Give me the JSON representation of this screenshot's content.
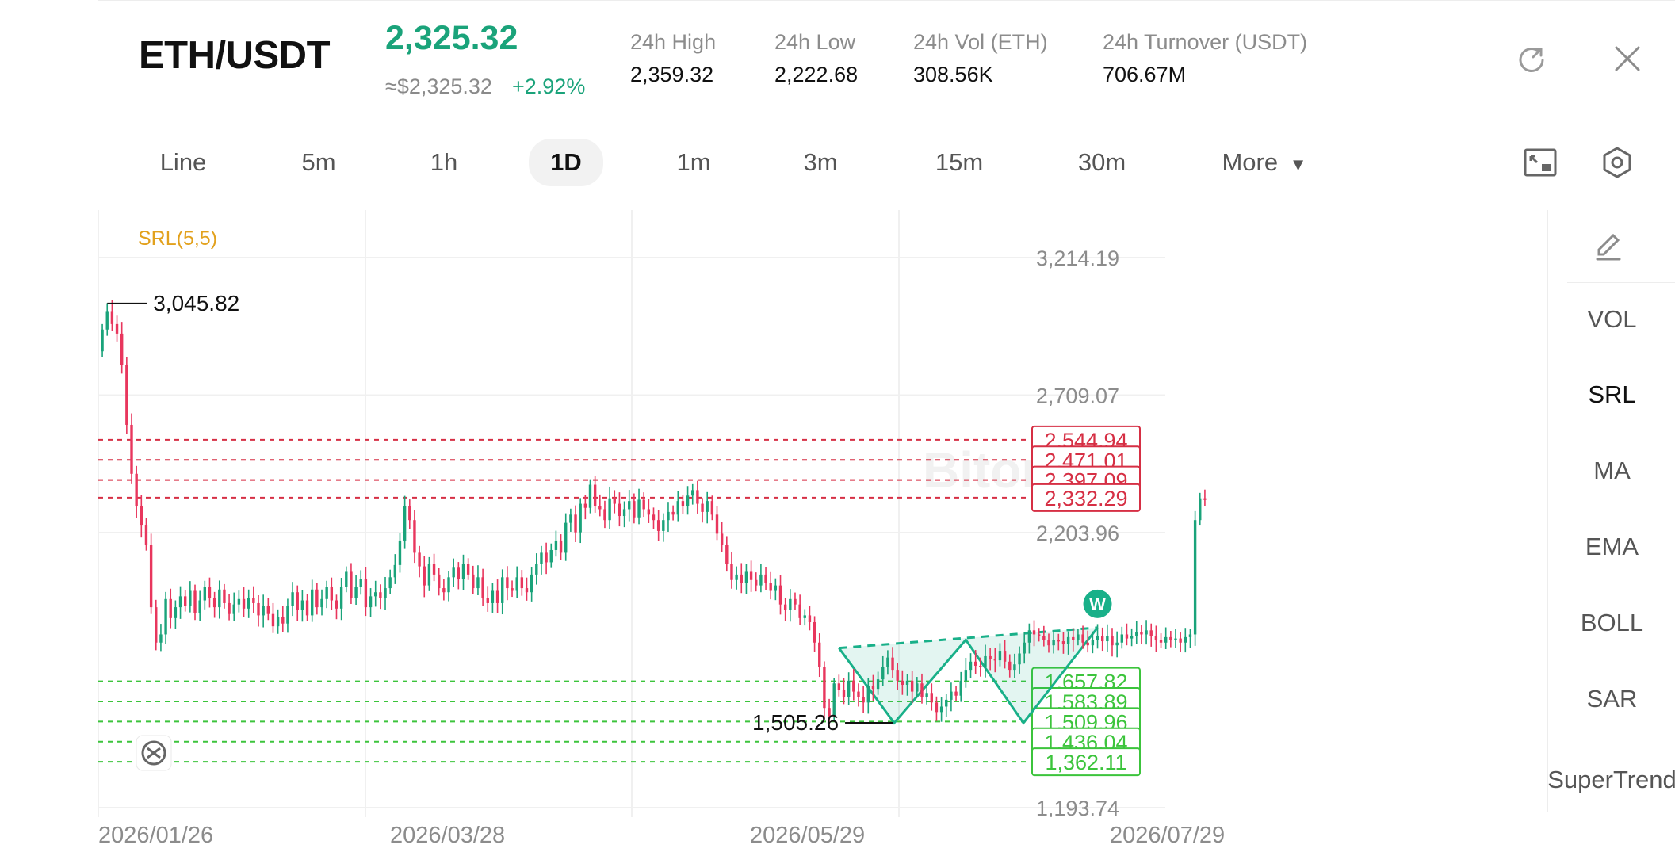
{
  "header": {
    "pair": "ETH/USDT",
    "last_price": "2,325.32",
    "usd_price": "≈$2,325.32",
    "change_pct": "+2.92%",
    "stats": [
      {
        "label": "24h   High",
        "value": "2,359.32"
      },
      {
        "label": "24h   Low",
        "value": "2,222.68"
      },
      {
        "label": "24h   Vol (ETH)",
        "value": "308.56K"
      },
      {
        "label": "24h   Turnover (USDT)",
        "value": "706.67M"
      }
    ],
    "icons": [
      "share-icon",
      "close-icon"
    ]
  },
  "timeframes": {
    "tabs": [
      "Line",
      "5m",
      "1h",
      "1D",
      "1m",
      "3m",
      "15m",
      "30m",
      "More"
    ],
    "active": "1D",
    "tool_icons": [
      "fullscreen-icon",
      "settings-icon"
    ]
  },
  "side_panel": {
    "items": [
      "VOL",
      "SRL",
      "MA",
      "EMA",
      "BOLL",
      "SAR",
      "SuperTrend"
    ],
    "active": "SRL",
    "icon": "edit-icon"
  },
  "colors": {
    "up": "#1aa37a",
    "down": "#e8365d",
    "resistance": "#d62f44",
    "support": "#3cc43c",
    "indicator_label": "#e2a11d",
    "pattern": "#19b089"
  },
  "chart_data": {
    "type": "candlestick",
    "indicator_label": "SRL(5,5)",
    "y_axis_ticks": [
      "3,214.19",
      "2,709.07",
      "2,203.96",
      "1,193.74"
    ],
    "x_axis_ticks": [
      "2026/01/26",
      "2026/03/28",
      "2026/05/29",
      "2026/07/29"
    ],
    "ylim": [
      1193.74,
      3214.19
    ],
    "max_marker": "3,045.82",
    "min_marker": "1,505.26",
    "resistance_levels": [
      "2,544.94",
      "2,471.01",
      "2,397.09",
      "2,332.29"
    ],
    "support_levels": [
      "1,657.82",
      "1,583.89",
      "1,509.96",
      "1,436.04",
      "1,362.11"
    ],
    "pattern_badge": "W",
    "closes": [
      2950,
      3015,
      2970,
      2935,
      2820,
      2600,
      2420,
      2300,
      2230,
      2160,
      1930,
      1800,
      1830,
      1960,
      1890,
      1930,
      1970,
      1935,
      1990,
      1910,
      1955,
      2005,
      1965,
      1930,
      1995,
      1945,
      1905,
      1940,
      1960,
      1925,
      1965,
      1945,
      1900,
      1935,
      1905,
      1860,
      1895,
      1870,
      1935,
      1985,
      1920,
      1955,
      1900,
      1995,
      1930,
      1960,
      2005,
      1955,
      1925,
      2005,
      2060,
      1965,
      2005,
      2035,
      1930,
      1970,
      1985,
      1965,
      2000,
      2040,
      2085,
      2175,
      2300,
      2250,
      2130,
      2080,
      2010,
      2090,
      2050,
      2000,
      1985,
      2040,
      2075,
      2035,
      2090,
      2050,
      2000,
      2040,
      1965,
      1945,
      1990,
      1945,
      2040,
      2000,
      1990,
      2040,
      2000,
      1985,
      2050,
      2090,
      2130,
      2095,
      2140,
      2175,
      2130,
      2240,
      2270,
      2205,
      2310,
      2295,
      2380,
      2300,
      2290,
      2250,
      2330,
      2310,
      2265,
      2290,
      2320,
      2260,
      2325,
      2290,
      2270,
      2250,
      2210,
      2250,
      2280,
      2270,
      2320,
      2300,
      2340,
      2360,
      2310,
      2280,
      2320,
      2270,
      2200,
      2160,
      2090,
      2030,
      2050,
      2020,
      2060,
      2030,
      2010,
      2050,
      2020,
      1990,
      2010,
      1940,
      1920,
      1960,
      1940,
      1890,
      1900,
      1875,
      1800,
      1710,
      1560,
      1530,
      1650,
      1625,
      1600,
      1660,
      1620,
      1600,
      1580,
      1640,
      1630,
      1665,
      1710,
      1745,
      1700,
      1660,
      1645,
      1660,
      1620,
      1650,
      1600,
      1615,
      1580,
      1545,
      1565,
      1590,
      1620,
      1605,
      1660,
      1700,
      1730,
      1715,
      1710,
      1750,
      1740,
      1735,
      1770,
      1730,
      1700,
      1720,
      1760,
      1800,
      1845,
      1830,
      1825,
      1810,
      1790,
      1810,
      1805,
      1795,
      1820,
      1810,
      1830,
      1800,
      1790,
      1810,
      1825,
      1805,
      1825,
      1790,
      1800,
      1830,
      1815,
      1825,
      1840,
      1830,
      1845,
      1825,
      1810,
      1800,
      1820,
      1810,
      1815,
      1800,
      1820,
      1830,
      2250,
      2330,
      2325
    ]
  }
}
